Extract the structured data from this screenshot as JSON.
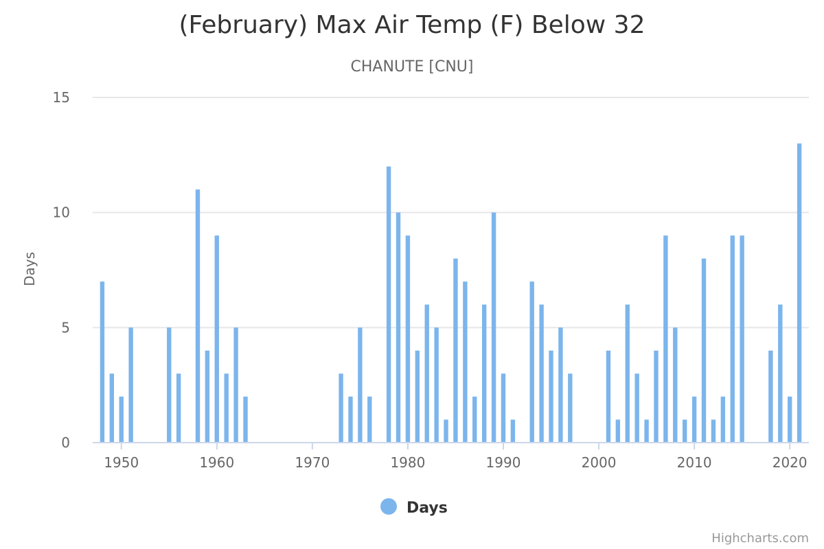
{
  "chart_data": {
    "type": "bar",
    "title": "(February) Max Air Temp (F) Below 32",
    "subtitle": "CHANUTE [CNU]",
    "ylabel": "Days",
    "xlabel": "",
    "ylim": [
      0,
      15
    ],
    "xlim": [
      1947,
      2022
    ],
    "yticks": [
      0,
      5,
      10,
      15
    ],
    "xticks": [
      1950,
      1960,
      1970,
      1980,
      1990,
      2000,
      2010,
      2020
    ],
    "grid": true,
    "legend_position": "bottom-center",
    "series": [
      {
        "name": "Days",
        "color": "#7cb5ec",
        "x": [
          1948,
          1949,
          1950,
          1951,
          1955,
          1956,
          1958,
          1959,
          1960,
          1961,
          1962,
          1963,
          1973,
          1974,
          1975,
          1976,
          1978,
          1979,
          1980,
          1981,
          1982,
          1983,
          1984,
          1985,
          1986,
          1987,
          1988,
          1989,
          1990,
          1991,
          1993,
          1994,
          1995,
          1996,
          1997,
          2001,
          2002,
          2003,
          2004,
          2005,
          2006,
          2007,
          2008,
          2009,
          2010,
          2011,
          2012,
          2013,
          2014,
          2015,
          2018,
          2019,
          2020,
          2021
        ],
        "values": [
          7,
          3,
          2,
          5,
          5,
          3,
          11,
          4,
          9,
          3,
          5,
          2,
          3,
          2,
          5,
          2,
          12,
          10,
          9,
          4,
          6,
          5,
          1,
          8,
          7,
          2,
          6,
          10,
          3,
          1,
          7,
          6,
          4,
          5,
          3,
          4,
          1,
          6,
          3,
          1,
          4,
          9,
          5,
          1,
          2,
          8,
          1,
          2,
          9,
          9,
          4,
          6,
          2,
          13
        ]
      }
    ]
  },
  "credits": "Highcharts.com"
}
